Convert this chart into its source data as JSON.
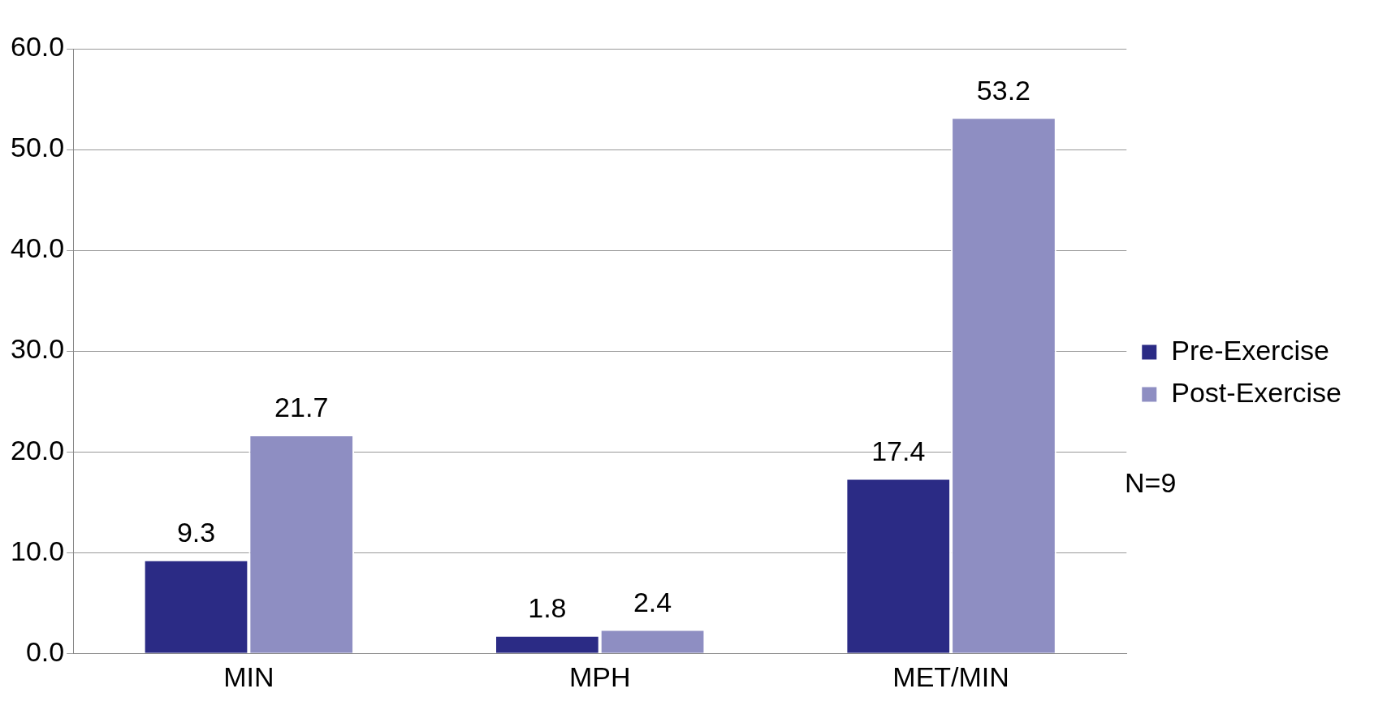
{
  "chart_data": {
    "type": "bar",
    "categories": [
      "MIN",
      "MPH",
      "MET/MIN"
    ],
    "series": [
      {
        "name": "Pre-Exercise",
        "color": "#2b2b85",
        "values": [
          9.3,
          1.8,
          17.4
        ]
      },
      {
        "name": "Post-Exercise",
        "color": "#8e8ec2",
        "values": [
          21.7,
          2.4,
          53.2
        ]
      }
    ],
    "ylim": [
      0,
      60
    ],
    "yticks": [
      {
        "value": 0,
        "label": "0.0"
      },
      {
        "value": 10,
        "label": "10.0"
      },
      {
        "value": 20,
        "label": "20.0"
      },
      {
        "value": 30,
        "label": "30.0"
      },
      {
        "value": 40,
        "label": "40.0"
      },
      {
        "value": 50,
        "label": "50.0"
      },
      {
        "value": 60,
        "label": "60.0"
      }
    ],
    "grid": "y",
    "legend": "right",
    "data_labels": true,
    "annotations": [
      "N=9"
    ]
  }
}
